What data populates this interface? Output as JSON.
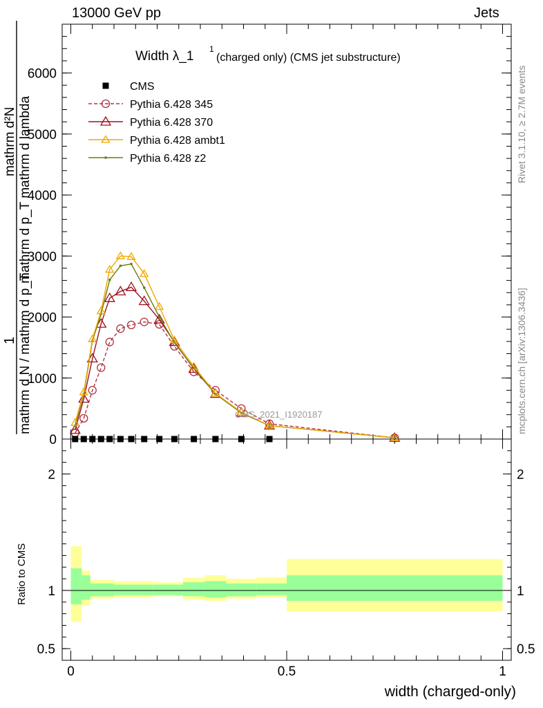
{
  "header": {
    "left": "13000 GeV pp",
    "right": "Jets"
  },
  "side": {
    "rivet": "Rivet 3.1.10, ≥ 2.7M events",
    "mcplots": "mcplots.cern.ch [arXiv:1306.3436]"
  },
  "colors": {
    "cms": "#000000",
    "p345": "#b03040",
    "p370": "#9b1020",
    "ambt1": "#f0a800",
    "z2": "#6b7a10",
    "band_inner": "#99ff99",
    "band_outer": "#ffff99"
  },
  "chart_data": [
    {
      "type": "line",
      "title_main": "Width λ_1",
      "title_sup": "1",
      "title_rest": "(charged only) (CMS jet substructure)",
      "ylabel_numerator": "mathrm d²N",
      "ylabel_numerator_sub": "mathrm d p_T mathrm d lambda",
      "ylabel_prefix": "1",
      "ylabel_denominator": "mathrm d N / mathrm d p_T",
      "watermark": "CMS_2021_I1920187",
      "xlim": [
        -0.02,
        1.02
      ],
      "ylim": [
        0,
        6800
      ],
      "yticks": [
        0,
        1000,
        2000,
        3000,
        4000,
        5000,
        6000
      ],
      "ytick_labels": [
        "0",
        "1000",
        "2000",
        "3000",
        "4000",
        "5000",
        "6000"
      ],
      "legend": [
        {
          "key": "cms",
          "name": "CMS"
        },
        {
          "key": "p345",
          "name": "Pythia 6.428 345"
        },
        {
          "key": "p370",
          "name": "Pythia 6.428 370"
        },
        {
          "key": "ambt1",
          "name": "Pythia 6.428 ambt1"
        },
        {
          "key": "z2",
          "name": "Pythia 6.428 z2"
        }
      ],
      "series": [
        {
          "key": "cms",
          "name": "CMS",
          "marker": "square",
          "x": [
            0.01,
            0.03,
            0.05,
            0.07,
            0.09,
            0.115,
            0.14,
            0.17,
            0.205,
            0.24,
            0.285,
            0.335,
            0.395,
            0.46
          ],
          "y": [
            0,
            0,
            0,
            0,
            0,
            0,
            0,
            0,
            0,
            0,
            0,
            0,
            0,
            0
          ]
        },
        {
          "key": "p345",
          "name": "Pythia 6.428 345",
          "marker": "circle",
          "dashed": true,
          "x": [
            0.01,
            0.03,
            0.05,
            0.07,
            0.09,
            0.115,
            0.14,
            0.17,
            0.205,
            0.24,
            0.285,
            0.335,
            0.395,
            0.46,
            0.75
          ],
          "y": [
            100,
            340,
            800,
            1170,
            1590,
            1810,
            1870,
            1920,
            1880,
            1520,
            1100,
            800,
            500,
            250,
            20
          ]
        },
        {
          "key": "p370",
          "name": "Pythia 6.428 370",
          "marker": "triangle",
          "x": [
            0.01,
            0.03,
            0.05,
            0.07,
            0.09,
            0.115,
            0.14,
            0.17,
            0.205,
            0.24,
            0.285,
            0.335,
            0.395,
            0.46,
            0.75
          ],
          "y": [
            150,
            660,
            1320,
            1890,
            2310,
            2420,
            2490,
            2260,
            1960,
            1590,
            1150,
            740,
            430,
            220,
            20
          ]
        },
        {
          "key": "ambt1",
          "name": "Pythia 6.428 ambt1",
          "marker": "triangle-small",
          "x": [
            0.01,
            0.03,
            0.05,
            0.07,
            0.09,
            0.115,
            0.14,
            0.17,
            0.205,
            0.24,
            0.285,
            0.335,
            0.395,
            0.46,
            0.75
          ],
          "y": [
            270,
            770,
            1640,
            2100,
            2780,
            3000,
            2990,
            2710,
            2170,
            1620,
            1190,
            750,
            440,
            220,
            20
          ]
        },
        {
          "key": "z2",
          "name": "Pythia 6.428 z2",
          "marker": "dot",
          "x": [
            0.01,
            0.03,
            0.05,
            0.07,
            0.09,
            0.115,
            0.14,
            0.17,
            0.205,
            0.24,
            0.285,
            0.335,
            0.395,
            0.46,
            0.75
          ],
          "y": [
            220,
            740,
            1610,
            2050,
            2610,
            2840,
            2870,
            2480,
            2000,
            1580,
            1160,
            740,
            430,
            220,
            20
          ]
        }
      ]
    },
    {
      "type": "area",
      "ylabel": "Ratio to CMS",
      "xlabel": "width (charged-only)",
      "xlim": [
        -0.02,
        1.02
      ],
      "ylim": [
        0.4,
        2.3
      ],
      "xticks": [
        0,
        0.5,
        1
      ],
      "xtick_labels": [
        "0",
        "0.5",
        "1"
      ],
      "yticks": [
        0.5,
        1,
        2
      ],
      "ytick_labels": [
        "0.5",
        "1",
        "2"
      ],
      "reference_line": 1,
      "bands": [
        {
          "x0": 0.0,
          "x1": 0.025,
          "inner": [
            0.88,
            1.19
          ],
          "outer": [
            0.73,
            1.38
          ]
        },
        {
          "x0": 0.025,
          "x1": 0.045,
          "inner": [
            0.92,
            1.13
          ],
          "outer": [
            0.87,
            1.17
          ]
        },
        {
          "x0": 0.045,
          "x1": 0.1,
          "inner": [
            0.95,
            1.06
          ],
          "outer": [
            0.93,
            1.09
          ]
        },
        {
          "x0": 0.1,
          "x1": 0.19,
          "inner": [
            0.96,
            1.05
          ],
          "outer": [
            0.94,
            1.08
          ]
        },
        {
          "x0": 0.19,
          "x1": 0.26,
          "inner": [
            0.96,
            1.05
          ],
          "outer": [
            0.95,
            1.07
          ]
        },
        {
          "x0": 0.26,
          "x1": 0.31,
          "inner": [
            0.95,
            1.07
          ],
          "outer": [
            0.92,
            1.11
          ]
        },
        {
          "x0": 0.31,
          "x1": 0.36,
          "inner": [
            0.94,
            1.08
          ],
          "outer": [
            0.91,
            1.13
          ]
        },
        {
          "x0": 0.36,
          "x1": 0.43,
          "inner": [
            0.95,
            1.06
          ],
          "outer": [
            0.93,
            1.1
          ]
        },
        {
          "x0": 0.43,
          "x1": 0.5,
          "inner": [
            0.96,
            1.06
          ],
          "outer": [
            0.94,
            1.11
          ]
        },
        {
          "x0": 0.5,
          "x1": 1.0,
          "inner": [
            0.91,
            1.13
          ],
          "outer": [
            0.82,
            1.27
          ]
        }
      ]
    }
  ]
}
